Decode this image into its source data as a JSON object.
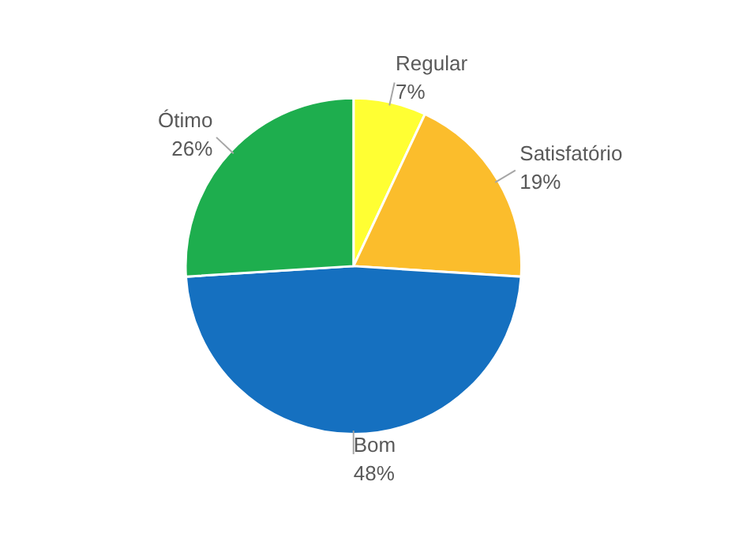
{
  "chart_data": {
    "type": "pie",
    "categories": [
      "Regular",
      "Satisfatório",
      "Bom",
      "Ótimo"
    ],
    "values": [
      7,
      19,
      48,
      26
    ],
    "colors": [
      "#ffff33",
      "#fbbd2c",
      "#1570c0",
      "#1eae4e"
    ],
    "value_labels": [
      "7%",
      "19%",
      "48%",
      "26%"
    ]
  }
}
